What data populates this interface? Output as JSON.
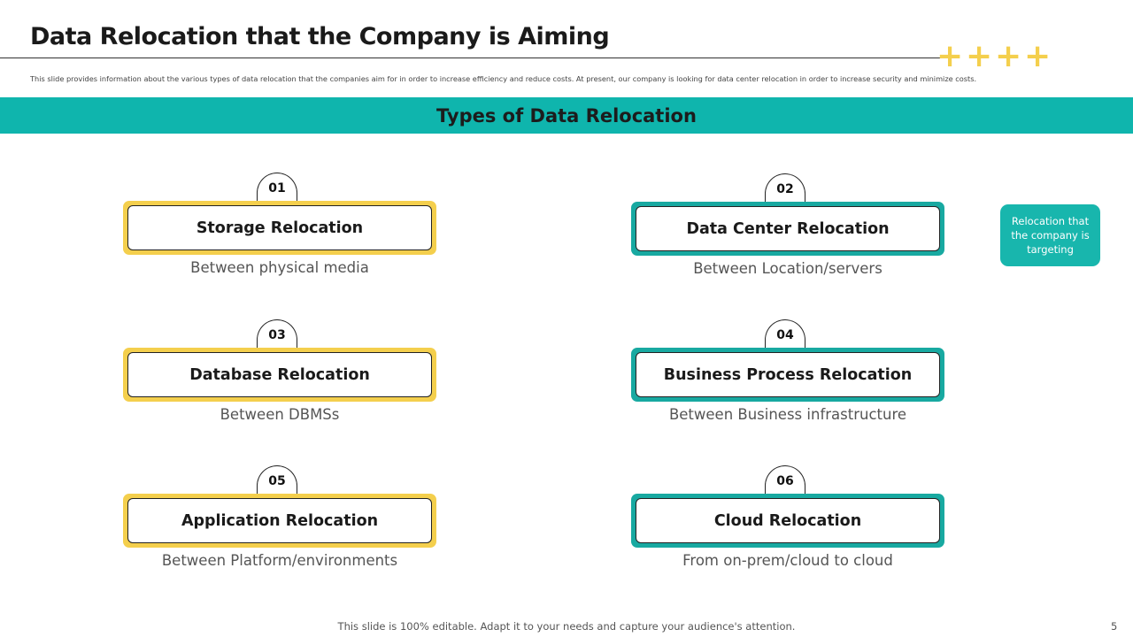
{
  "slide": {
    "title": "Data Relocation that the Company is Aiming",
    "description": "This slide provides information about the various types of data relocation that the companies aim for in order to increase efficiency and reduce costs. At present, our company is looking for data center relocation in order to increase security and minimize costs.",
    "decor_plus": [
      "+",
      "+",
      "+",
      "+"
    ],
    "section_heading": "Types of Data Relocation",
    "callout": "Relocation that the company is targeting",
    "footer": "This slide is 100% editable. Adapt it to your needs and capture your audience's attention.",
    "page_number": "5"
  },
  "colors": {
    "teal_band": "#0fb5ad",
    "teal_frame": "#18a9a1",
    "yellow_frame": "#f4cf4d"
  },
  "cards": [
    {
      "number": "01",
      "label": "Storage Relocation",
      "sub": "Between physical media",
      "accent": "yellow"
    },
    {
      "number": "02",
      "label": "Data Center Relocation",
      "sub": "Between Location/servers",
      "accent": "teal"
    },
    {
      "number": "03",
      "label": "Database Relocation",
      "sub": "Between DBMSs",
      "accent": "yellow"
    },
    {
      "number": "04",
      "label": "Business Process Relocation",
      "sub": "Between Business infrastructure",
      "accent": "teal"
    },
    {
      "number": "05",
      "label": "Application Relocation",
      "sub": "Between Platform/environments",
      "accent": "yellow"
    },
    {
      "number": "06",
      "label": "Cloud Relocation",
      "sub": "From on-prem/cloud to cloud",
      "accent": "teal"
    }
  ]
}
